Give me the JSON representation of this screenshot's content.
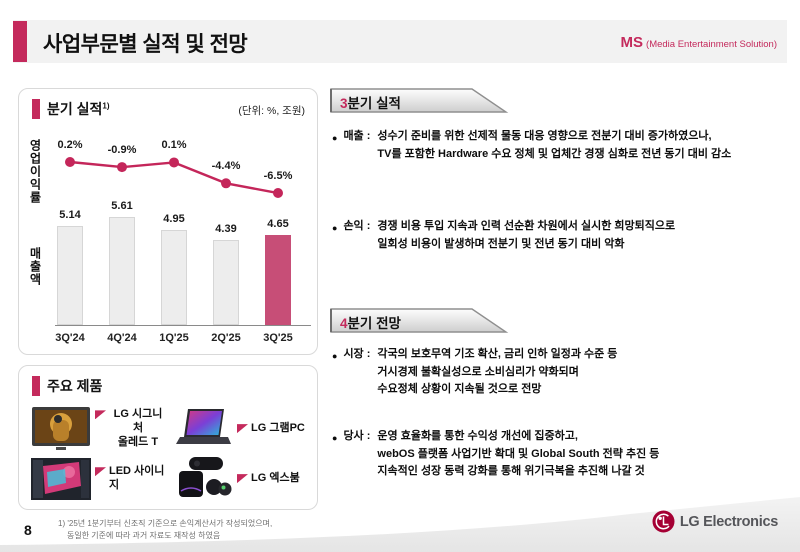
{
  "header": {
    "title": "사업부문별 실적 및 전망",
    "division_abbr": "MS",
    "division_full": "(Media Entertainment Solution)"
  },
  "quarterly_panel": {
    "title": "분기 실적",
    "title_sup": "1)",
    "unit_label": "(단위: %, 조원)",
    "y_axis_top": "영업이익률",
    "y_axis_bottom": "매출액"
  },
  "chart_data": {
    "type": "bar+line",
    "categories": [
      "3Q'24",
      "4Q'24",
      "1Q'25",
      "2Q'25",
      "3Q'25"
    ],
    "series": [
      {
        "name": "영업이익률",
        "type": "line",
        "unit": "%",
        "values": [
          0.2,
          -0.9,
          0.1,
          -4.4,
          -6.5
        ],
        "labels": [
          "0.2%",
          "-0.9%",
          "0.1%",
          "-4.4%",
          "-6.5%"
        ]
      },
      {
        "name": "매출액",
        "type": "bar",
        "unit": "조원",
        "values": [
          5.14,
          5.61,
          4.95,
          4.39,
          4.65
        ],
        "labels": [
          "5.14",
          "5.61",
          "4.95",
          "4.39",
          "4.65"
        ],
        "highlight_index": 4
      }
    ],
    "title": "분기 실적",
    "unit_note": "(단위: %, 조원)",
    "legend_position": "none",
    "grid": false
  },
  "products_panel": {
    "title": "주요 제품",
    "items": [
      {
        "label_lines": [
          "LG 시그니처",
          "올레드 T"
        ]
      },
      {
        "label_lines": [
          "LG 그램PC"
        ]
      },
      {
        "label_lines": [
          "LED 사이니지"
        ]
      },
      {
        "label_lines": [
          "LG 엑스붐"
        ]
      }
    ]
  },
  "sections": [
    {
      "banner_number": "3",
      "banner_rest": "분기 실적",
      "bullets": [
        {
          "label": "매출 :",
          "lines": [
            "성수기 준비를 위한 선제적 물동 대응 영향으로 전분기 대비 증가하였으나,",
            "TV를 포함한 Hardware 수요 정체 및 업체간 경쟁 심화로 전년 동기 대비 감소"
          ]
        },
        {
          "label": "손익 :",
          "lines": [
            "경쟁 비용 투입 지속과 인력 선순환 차원에서 실시한 희망퇴직으로",
            "일회성 비용이 발생하며 전분기 및 전년 동기 대비 악화"
          ]
        }
      ]
    },
    {
      "banner_number": "4",
      "banner_rest": "분기 전망",
      "bullets": [
        {
          "label": "시장 :",
          "lines": [
            "각국의 보호무역 기조 확산, 금리 인하 일정과 수준 등",
            "거시경제 불확실성으로 소비심리가 약화되며",
            "수요정체 상황이 지속될 것으로 전망"
          ]
        },
        {
          "label": "당사 :",
          "lines": [
            "운영 효율화를 통한 수익성 개선에 집중하고,",
            "webOS 플랫폼 사업기반 확대 및 Global South 전략 추진 등",
            "지속적인 성장 동력 강화를 통해 위기극복을 추진해 나갈 것"
          ]
        }
      ]
    }
  ],
  "footer": {
    "page_number": "8",
    "footnote_line1": "1) '25년 1분기부터 신조직 기준으로 손익계산서가 작성되었으며,",
    "footnote_line2": "동일한 기준에 따라 과거 자료도 재작성 하였음",
    "logo_text": "LG Electronics"
  },
  "colors": {
    "accent": "#C42A5C",
    "line": "#C4265A",
    "bar_highlight": "#C74E77",
    "bar_default": "#EDEDED",
    "lg_red": "#A50034",
    "banner_border": "#8f8f8f"
  }
}
